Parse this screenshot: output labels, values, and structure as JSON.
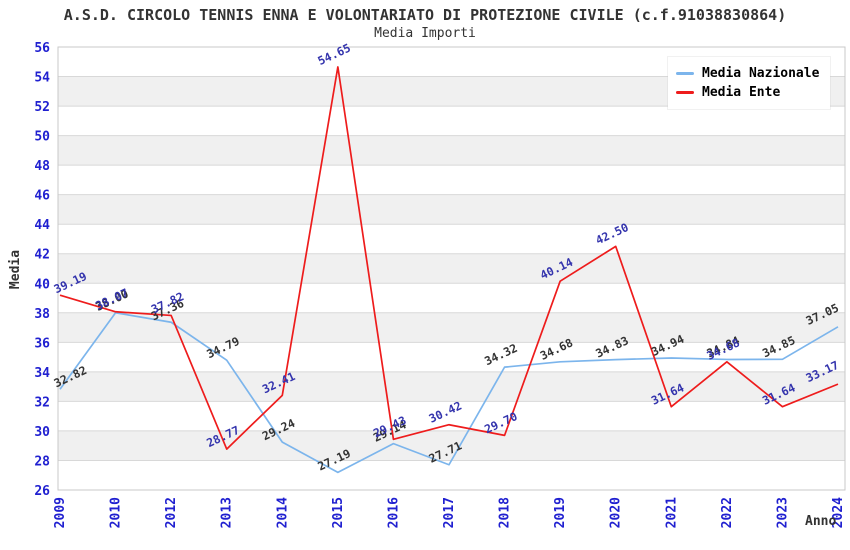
{
  "chart_data": {
    "type": "line",
    "title": "A.S.D. CIRCOLO TENNIS ENNA E VOLONTARIATO DI PROTEZIONE CIVILE (c.f.91038830864)",
    "subtitle": "Media Importi",
    "xlabel": "Anno",
    "ylabel": "Media",
    "ylim": [
      26,
      56
    ],
    "ytick_step": 2,
    "grid": true,
    "legend_position": "top-right",
    "band_colors": [
      "#ffffff",
      "#f0f0f0"
    ],
    "grid_color": "#d8d8d8",
    "axis_tick_color": "#2020d0",
    "categories": [
      "2009",
      "2010",
      "2012",
      "2013",
      "2014",
      "2015",
      "2016",
      "2017",
      "2018",
      "2019",
      "2020",
      "2021",
      "2022",
      "2023",
      "2024"
    ],
    "series": [
      {
        "name": "Media Nazionale",
        "color": "#7cb5ec",
        "label_color": "#333333",
        "values": [
          32.82,
          38.0,
          37.36,
          34.79,
          29.24,
          27.19,
          29.14,
          27.71,
          34.32,
          34.68,
          34.83,
          34.94,
          34.84,
          34.85,
          37.05
        ]
      },
      {
        "name": "Media Ente",
        "color": "#ee1c1c",
        "label_color": "#3434ad",
        "values": [
          39.19,
          38.07,
          37.82,
          28.77,
          32.41,
          54.65,
          29.43,
          30.42,
          29.7,
          40.14,
          42.5,
          31.64,
          34.68,
          31.64,
          33.17
        ]
      }
    ]
  }
}
